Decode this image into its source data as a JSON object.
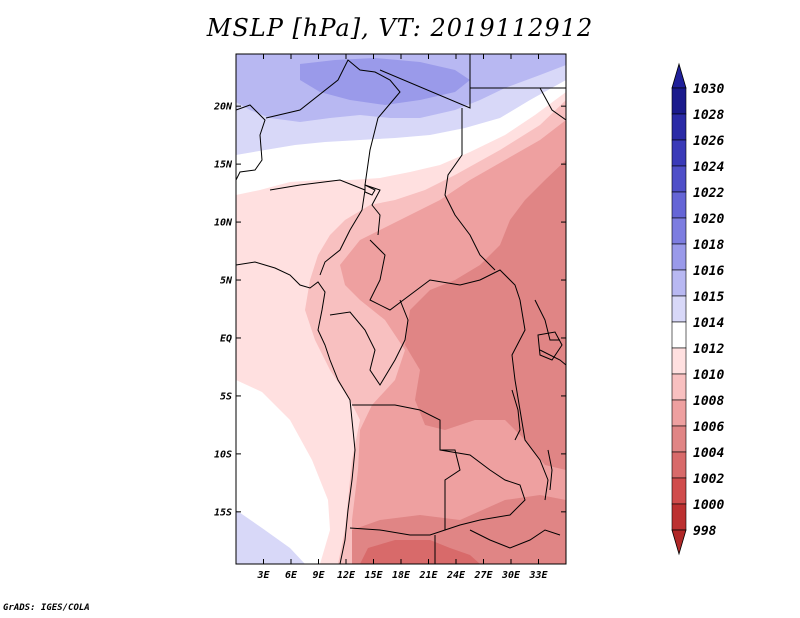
{
  "chart_data": {
    "type": "heatmap",
    "title": "MSLP [hPa], VT: 2019112912",
    "variable": "MSLP",
    "units": "hPa",
    "valid_time": "2019112912",
    "x_range": [
      0,
      36
    ],
    "y_range": [
      -19.5,
      24.5
    ],
    "x_ticks": [
      {
        "value": 3,
        "label": "3E"
      },
      {
        "value": 6,
        "label": "6E"
      },
      {
        "value": 9,
        "label": "9E"
      },
      {
        "value": 12,
        "label": "12E"
      },
      {
        "value": 15,
        "label": "15E"
      },
      {
        "value": 18,
        "label": "18E"
      },
      {
        "value": 21,
        "label": "21E"
      },
      {
        "value": 24,
        "label": "24E"
      },
      {
        "value": 27,
        "label": "27E"
      },
      {
        "value": 30,
        "label": "30E"
      },
      {
        "value": 33,
        "label": "33E"
      }
    ],
    "y_ticks": [
      {
        "value": 20,
        "label": "20N"
      },
      {
        "value": 15,
        "label": "15N"
      },
      {
        "value": 10,
        "label": "10N"
      },
      {
        "value": 5,
        "label": "5N"
      },
      {
        "value": 0,
        "label": "EQ"
      },
      {
        "value": -5,
        "label": "5S"
      },
      {
        "value": -10,
        "label": "10S"
      },
      {
        "value": -15,
        "label": "15S"
      }
    ],
    "colorbar": {
      "levels": [
        {
          "label": "1030",
          "color": "#1a1a8c"
        },
        {
          "label": "1028",
          "color": "#2a2aa6"
        },
        {
          "label": "1026",
          "color": "#3a3ab8"
        },
        {
          "label": "1024",
          "color": "#4f4fc8"
        },
        {
          "label": "1022",
          "color": "#6565d6"
        },
        {
          "label": "1020",
          "color": "#7d7de0"
        },
        {
          "label": "1018",
          "color": "#9a9aea"
        },
        {
          "label": "1016",
          "color": "#b8b8f2"
        },
        {
          "label": "1015",
          "color": "#d8d8f8"
        },
        {
          "label": "1014",
          "color": "#ffffff"
        },
        {
          "label": "1012",
          "color": "#ffe0e0"
        },
        {
          "label": "1010",
          "color": "#f8c0c0"
        },
        {
          "label": "1008",
          "color": "#eea0a0"
        },
        {
          "label": "1006",
          "color": "#e08585"
        },
        {
          "label": "1004",
          "color": "#d86a6a"
        },
        {
          "label": "1002",
          "color": "#d04c4c"
        },
        {
          "label": "1000",
          "color": "#bc3030"
        },
        {
          "label": "998",
          "color": "#a01f1f"
        }
      ],
      "top_arrow_color": "#20209a",
      "bottom_arrow_color": "#b02828"
    }
  },
  "credit": "GrADS: IGES/COLA"
}
